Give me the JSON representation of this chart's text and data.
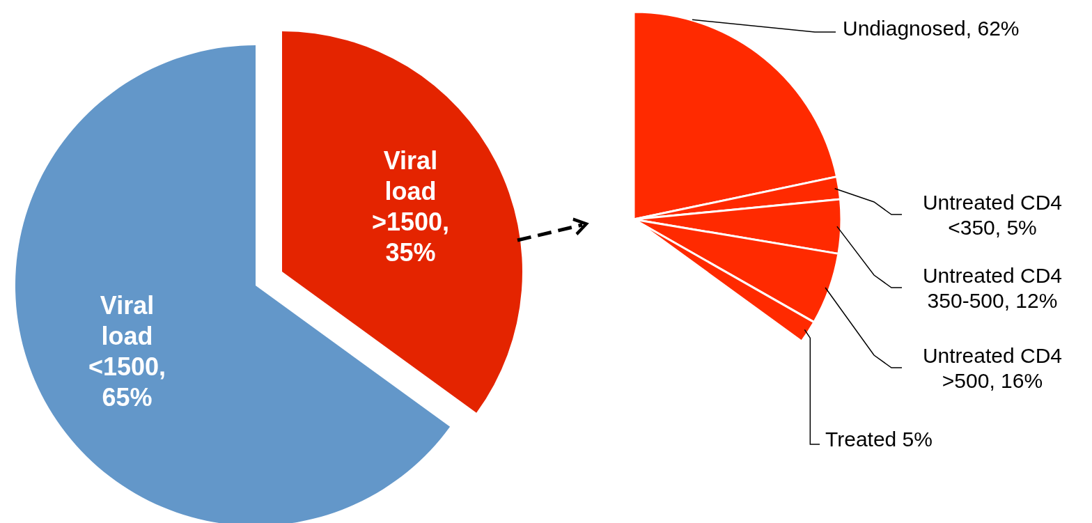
{
  "chart_data": [
    {
      "type": "pie",
      "categories": [
        "Viral load >1500, 35%",
        "Viral load <1500, 65%"
      ],
      "values": [
        35,
        65
      ],
      "colors": [
        "#e42400",
        "#6397c9"
      ],
      "legend": false
    },
    {
      "type": "pie",
      "categories": [
        "Undiagnosed, 62%",
        "Untreated CD4 <350, 5%",
        "Untreated CD4 350-500, 12%",
        "Untreated CD4 >500, 16%",
        "Treated 5%"
      ],
      "values": [
        62,
        5,
        12,
        16,
        5
      ],
      "colors": [
        "#ff2a00",
        "#ff2a00",
        "#ff2a00",
        "#ff2a00",
        "#ff2a00"
      ],
      "legend": false
    }
  ]
}
